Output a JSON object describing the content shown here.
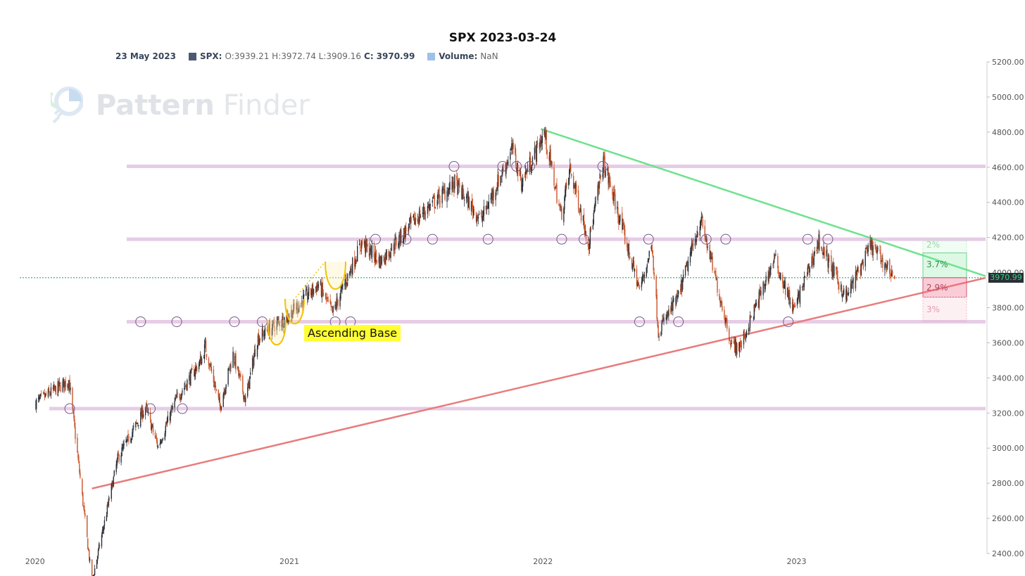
{
  "title": "SPX 2023-03-24",
  "legend": {
    "date": "23 May 2023",
    "series_label": "SPX:",
    "ohlc": "O:3939.21 H:3972.74 L:3909.16",
    "close_label": "C:",
    "close_value": "3970.99",
    "volume_label": "Volume:",
    "volume_value": "NaN"
  },
  "watermark": {
    "brand": "Pattern",
    "brand2": "Finder",
    "icon": "pattern-finder-logo-icon"
  },
  "last_price": "3970.99",
  "annotation": "Ascending Base",
  "percent_labels": {
    "up_far": "2%",
    "up_near": "3.7%",
    "down_near": "2.9%",
    "down_far": "3%"
  },
  "colors": {
    "up_candle": "#2a2f36",
    "down_candle": "#c8552b",
    "resistance_line": "#6ee28c",
    "support_line": "#e87c7c",
    "levels": "#e6cce6",
    "pattern": "#f2c200",
    "price_line": "#1a9b5a"
  },
  "chart_data": {
    "type": "candlestick",
    "title": "SPX 2023-03-24",
    "x_ticks": [
      "2020",
      "2021",
      "2022",
      "2023"
    ],
    "y_ticks": [
      "2400.00",
      "2600.00",
      "2800.00",
      "3000.00",
      "3200.00",
      "3400.00",
      "3600.00",
      "3800.00",
      "4000.00",
      "4200.00",
      "4400.00",
      "4600.00",
      "4800.00",
      "5000.00",
      "5200.00"
    ],
    "ylim": [
      2400,
      5200
    ],
    "xlim": [
      "2019-12-10",
      "2023-09-30"
    ],
    "grid": false,
    "horizontal_levels": [
      3225,
      3720,
      4190,
      4605
    ],
    "trendlines": [
      {
        "name": "resistance",
        "from": [
          "2021-12-29",
          4818
        ],
        "to": [
          "2023-09-30",
          3980
        ]
      },
      {
        "name": "support",
        "from": [
          "2020-03-23",
          2770
        ],
        "to": [
          "2023-09-30",
          3970
        ]
      }
    ],
    "price_path": [
      [
        "2020-01-02",
        3258
      ],
      [
        "2020-02-19",
        3386
      ],
      [
        "2020-03-23",
        2237
      ],
      [
        "2020-04-29",
        2939
      ],
      [
        "2020-06-08",
        3232
      ],
      [
        "2020-06-26",
        3009
      ],
      [
        "2020-07-22",
        3276
      ],
      [
        "2020-08-28",
        3508
      ],
      [
        "2020-09-02",
        3580
      ],
      [
        "2020-09-23",
        3237
      ],
      [
        "2020-10-12",
        3534
      ],
      [
        "2020-10-30",
        3270
      ],
      [
        "2020-11-16",
        3626
      ],
      [
        "2020-12-31",
        3756
      ],
      [
        "2021-02-12",
        3934
      ],
      [
        "2021-03-04",
        3768
      ],
      [
        "2021-04-15",
        4170
      ],
      [
        "2021-05-12",
        4063
      ],
      [
        "2021-06-30",
        4297
      ],
      [
        "2021-08-27",
        4509
      ],
      [
        "2021-10-04",
        4300
      ],
      [
        "2021-11-18",
        4704
      ],
      [
        "2021-12-01",
        4513
      ],
      [
        "2022-01-03",
        4796
      ],
      [
        "2022-01-27",
        4326
      ],
      [
        "2022-02-09",
        4587
      ],
      [
        "2022-03-08",
        4170
      ],
      [
        "2022-03-29",
        4631
      ],
      [
        "2022-05-20",
        3901
      ],
      [
        "2022-06-07",
        4160
      ],
      [
        "2022-06-16",
        3666
      ],
      [
        "2022-07-15",
        3863
      ],
      [
        "2022-08-16",
        4305
      ],
      [
        "2022-09-30",
        3585
      ],
      [
        "2022-10-12",
        3577
      ],
      [
        "2022-11-30",
        4080
      ],
      [
        "2022-12-28",
        3783
      ],
      [
        "2023-02-02",
        4179
      ],
      [
        "2023-03-13",
        3855
      ],
      [
        "2023-04-18",
        4155
      ],
      [
        "2023-05-23",
        3970.99
      ]
    ],
    "patterns": [
      {
        "name": "Ascending Base"
      }
    ]
  }
}
